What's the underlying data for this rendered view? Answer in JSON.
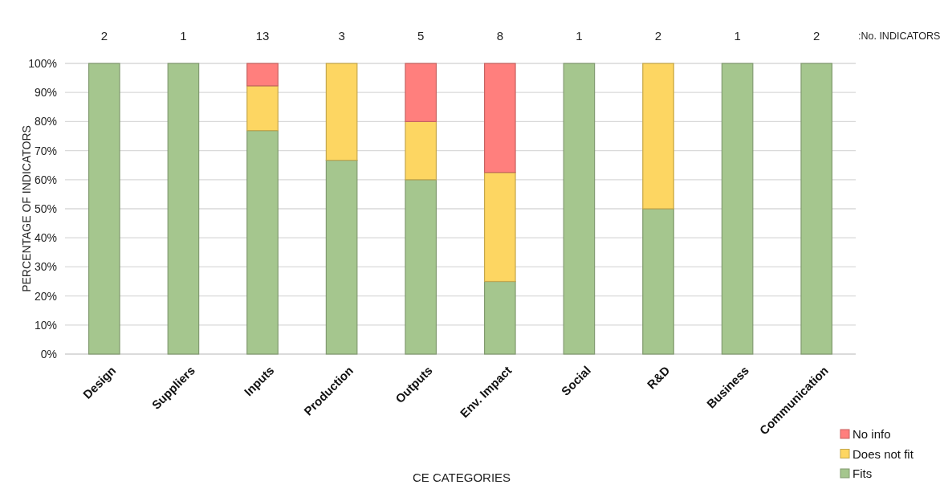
{
  "chart_data": {
    "type": "bar",
    "stacked": true,
    "xlabel": "CE CATEGORIES",
    "ylabel": "PERCENTAGE OF INDICATORS",
    "categories": [
      "Design",
      "Suppliers",
      "Inputs",
      "Production",
      "Outputs",
      "Env. Impact",
      "Social",
      "R&D",
      "Business",
      "Communication"
    ],
    "series": [
      {
        "name": "Fits",
        "color": "#a5c68e",
        "values": [
          100,
          100,
          76.9,
          66.7,
          60,
          25,
          100,
          50,
          100,
          100
        ]
      },
      {
        "name": "Does not fit",
        "color": "#fdd662",
        "values": [
          0,
          0,
          15.4,
          33.3,
          20,
          37.5,
          0,
          50,
          0,
          0
        ]
      },
      {
        "name": "No info",
        "color": "#ff7f7d",
        "values": [
          0,
          0,
          7.7,
          0,
          20,
          37.5,
          0,
          0,
          0,
          0
        ]
      }
    ],
    "ylim": [
      0,
      100
    ],
    "yticks": [
      {
        "value": 0,
        "label": "0%"
      },
      {
        "value": 10,
        "label": "10%"
      },
      {
        "value": 20,
        "label": "20%"
      },
      {
        "value": 30,
        "label": "30%"
      },
      {
        "value": 40,
        "label": "40%"
      },
      {
        "value": 50,
        "label": "50%"
      },
      {
        "value": 60,
        "label": "60%"
      },
      {
        "value": 70,
        "label": "70%"
      },
      {
        "value": 80,
        "label": "80%"
      },
      {
        "value": 90,
        "label": "90%"
      },
      {
        "value": 100,
        "label": "100%"
      }
    ],
    "grid": "y",
    "legend": "bottom right",
    "annotations": [
      "2",
      "1",
      "13",
      "3",
      "5",
      "8",
      "1",
      "2",
      "1",
      "2",
      ":No. INDICATORS"
    ]
  }
}
